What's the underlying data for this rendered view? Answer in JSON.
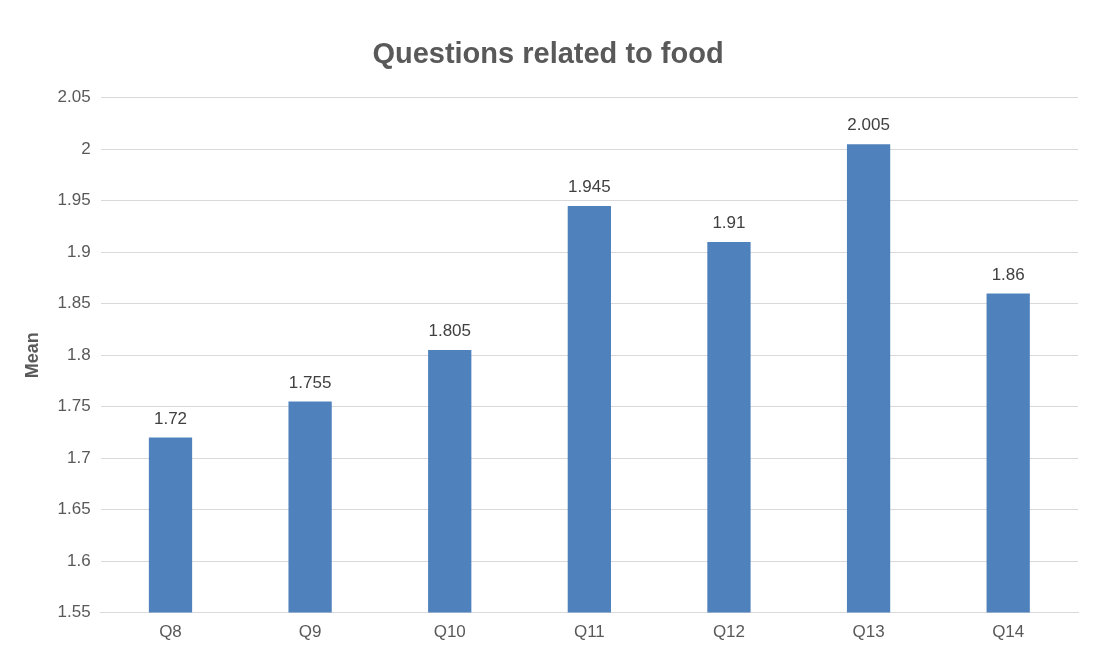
{
  "chart_data": {
    "type": "bar",
    "title": "Questions related to food",
    "ylabel": "Mean",
    "categories": [
      "Q8",
      "Q9",
      "Q10",
      "Q11",
      "Q12",
      "Q13",
      "Q14"
    ],
    "values": [
      1.72,
      1.755,
      1.805,
      1.945,
      1.91,
      2.005,
      1.86
    ],
    "color": "#4f81bd",
    "ylim": [
      1.55,
      2.05
    ],
    "yticks": [
      1.55,
      1.6,
      1.65,
      1.7,
      1.75,
      1.8,
      1.85,
      1.9,
      1.95,
      2,
      2.05
    ],
    "grid": "y",
    "data_labels": true,
    "legend": false
  }
}
